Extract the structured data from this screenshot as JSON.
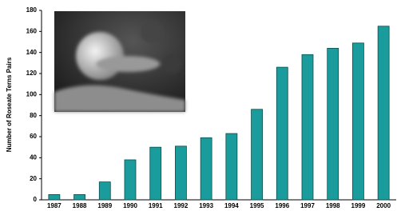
{
  "chart_data": {
    "type": "bar",
    "y_label": "Number of Roseate Terns Pairs",
    "categories": [
      "1987",
      "1988",
      "1989",
      "1990",
      "1991",
      "1992",
      "1993",
      "1994",
      "1995",
      "1996",
      "1997",
      "1998",
      "1999",
      "2000"
    ],
    "values": [
      5,
      5,
      17,
      38,
      50,
      51,
      59,
      63,
      86,
      126,
      138,
      144,
      149,
      165
    ],
    "color": "#1b9c9c",
    "ylim": [
      0,
      180
    ],
    "yticks": [
      0,
      20,
      40,
      60,
      80,
      100,
      120,
      140,
      160,
      180
    ],
    "grid": false
  }
}
